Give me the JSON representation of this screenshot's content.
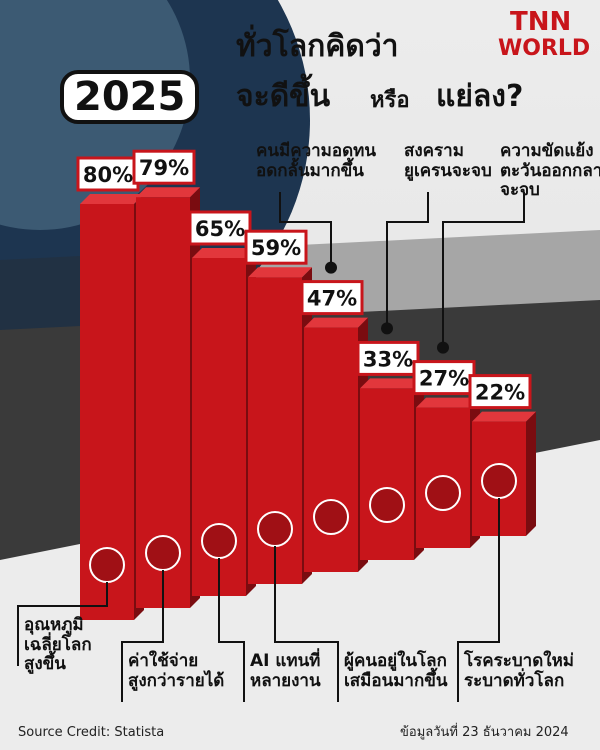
{
  "chart_data": {
    "type": "bar",
    "title_parts": [
      "ทั่วโลกคิดว่า",
      "2025",
      "จะดีขึ้น",
      "หรือ",
      "แย่ลง?"
    ],
    "logo": [
      "TNN",
      "WORLD"
    ],
    "categories": [
      "อุณหภูมิ\nเฉลี่ยโลก\nสูงขึ้น",
      "ค่าใช้จ่าย\nสูงกว่ารายได้",
      "AI แทนที่\nหลายงาน",
      "ผู้คนอยู่ในโลก\nเสมือนมากขึ้น",
      "คนมีความอดทน\nอดกลั้นมากขึ้น",
      "สงคราม\nยูเครนจะจบ",
      "ความขัดแย้ง\nตะวันออกกลาง\nจะจบ",
      "โรคระบาดใหม่\nระบาดทั่วโลก"
    ],
    "values": [
      80,
      79,
      65,
      59,
      47,
      33,
      27,
      22
    ],
    "value_labels": [
      "80%",
      "79%",
      "65%",
      "59%",
      "47%",
      "33%",
      "27%",
      "22%"
    ],
    "color": "#c8151b",
    "source": "Source Credit: Statista",
    "date_note": "ข้อมูลวันที่ 23 ธันวาคม 2024"
  }
}
